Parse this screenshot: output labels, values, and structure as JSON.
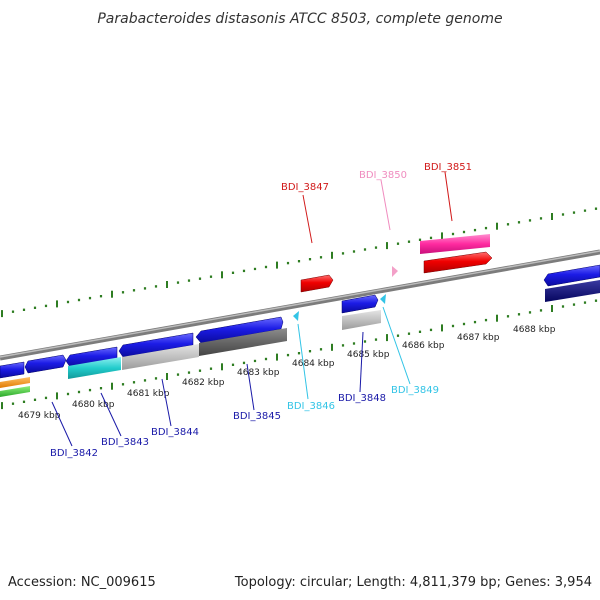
{
  "title": "Parabacteroides distasonis ATCC 8503, complete genome",
  "footer": {
    "accession": "Accession: NC_009615",
    "summary": "Topology: circular; Length: 4,811,379 bp; Genes: 3,954"
  },
  "colors": {
    "backbone": "#8a8a8a",
    "tick": "#2e7d22",
    "label_blue": "#1a1aa8",
    "label_cyan": "#33c4e6",
    "label_red": "#d11a1a",
    "label_pink": "#f08cbf"
  },
  "kbp_ticks": [
    "4679 kbp",
    "4680 kbp",
    "4681 kbp",
    "4682 kbp",
    "4683 kbp",
    "4684 kbp",
    "4685 kbp",
    "4686 kbp",
    "4687 kbp",
    "4688 kbp"
  ],
  "gene_labels": [
    {
      "id": "BDI_3842",
      "color": "#1a1aa8"
    },
    {
      "id": "BDI_3843",
      "color": "#1a1aa8"
    },
    {
      "id": "BDI_3844",
      "color": "#1a1aa8"
    },
    {
      "id": "BDI_3845",
      "color": "#1a1aa8"
    },
    {
      "id": "BDI_3846",
      "color": "#33c4e6"
    },
    {
      "id": "BDI_3848",
      "color": "#1a1aa8"
    },
    {
      "id": "BDI_3849",
      "color": "#33c4e6"
    },
    {
      "id": "BDI_3847",
      "color": "#d11a1a"
    },
    {
      "id": "BDI_3850",
      "color": "#f08cbf"
    },
    {
      "id": "BDI_3851",
      "color": "#d11a1a"
    }
  ]
}
